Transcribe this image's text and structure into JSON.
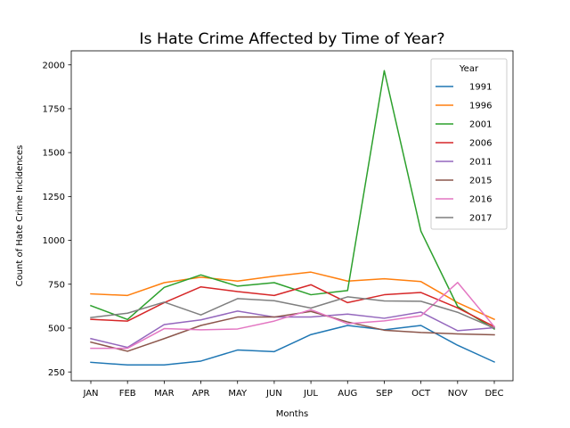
{
  "chart_data": {
    "type": "line",
    "title": "Is Hate Crime Affected by Time of Year?",
    "xlabel": "Months",
    "ylabel": "Count of Hate Crime Incidences",
    "categories": [
      "JAN",
      "FEB",
      "MAR",
      "APR",
      "MAY",
      "JUN",
      "JUL",
      "AUG",
      "SEP",
      "OCT",
      "NOV",
      "DEC"
    ],
    "ylim": [
      200,
      2080
    ],
    "yticks": [
      250,
      500,
      750,
      1000,
      1250,
      1500,
      1750,
      2000
    ],
    "ytick_labels": [
      "250",
      "500",
      "750",
      "1000",
      "1250",
      "1500",
      "1750",
      "2000"
    ],
    "grid": false,
    "legend": {
      "title": "Year",
      "placement": "top-right"
    },
    "series": [
      {
        "name": "1991",
        "color": "#1f77b4",
        "values": [
          305,
          290,
          290,
          312,
          375,
          366,
          463,
          515,
          490,
          515,
          402,
          307
        ]
      },
      {
        "name": "1996",
        "color": "#ff7f0e",
        "values": [
          695,
          686,
          759,
          790,
          768,
          796,
          819,
          768,
          781,
          765,
          645,
          550
        ]
      },
      {
        "name": "2001",
        "color": "#2ca02c",
        "values": [
          628,
          549,
          732,
          803,
          739,
          759,
          690,
          714,
          1967,
          1052,
          623,
          495
        ]
      },
      {
        "name": "2006",
        "color": "#d62728",
        "values": [
          550,
          540,
          645,
          735,
          708,
          686,
          747,
          645,
          690,
          703,
          615,
          508
        ]
      },
      {
        "name": "2011",
        "color": "#9467bd",
        "values": [
          440,
          390,
          520,
          547,
          597,
          563,
          563,
          580,
          556,
          591,
          485,
          502
        ]
      },
      {
        "name": "2015",
        "color": "#8c564b",
        "values": [
          420,
          368,
          440,
          515,
          563,
          563,
          595,
          535,
          488,
          475,
          467,
          462
        ]
      },
      {
        "name": "2016",
        "color": "#e377c2",
        "values": [
          385,
          385,
          497,
          490,
          495,
          540,
          605,
          525,
          541,
          570,
          760,
          508
        ]
      },
      {
        "name": "2017",
        "color": "#7f7f7f",
        "values": [
          560,
          585,
          648,
          575,
          668,
          656,
          614,
          678,
          655,
          653,
          590,
          500
        ]
      }
    ]
  }
}
